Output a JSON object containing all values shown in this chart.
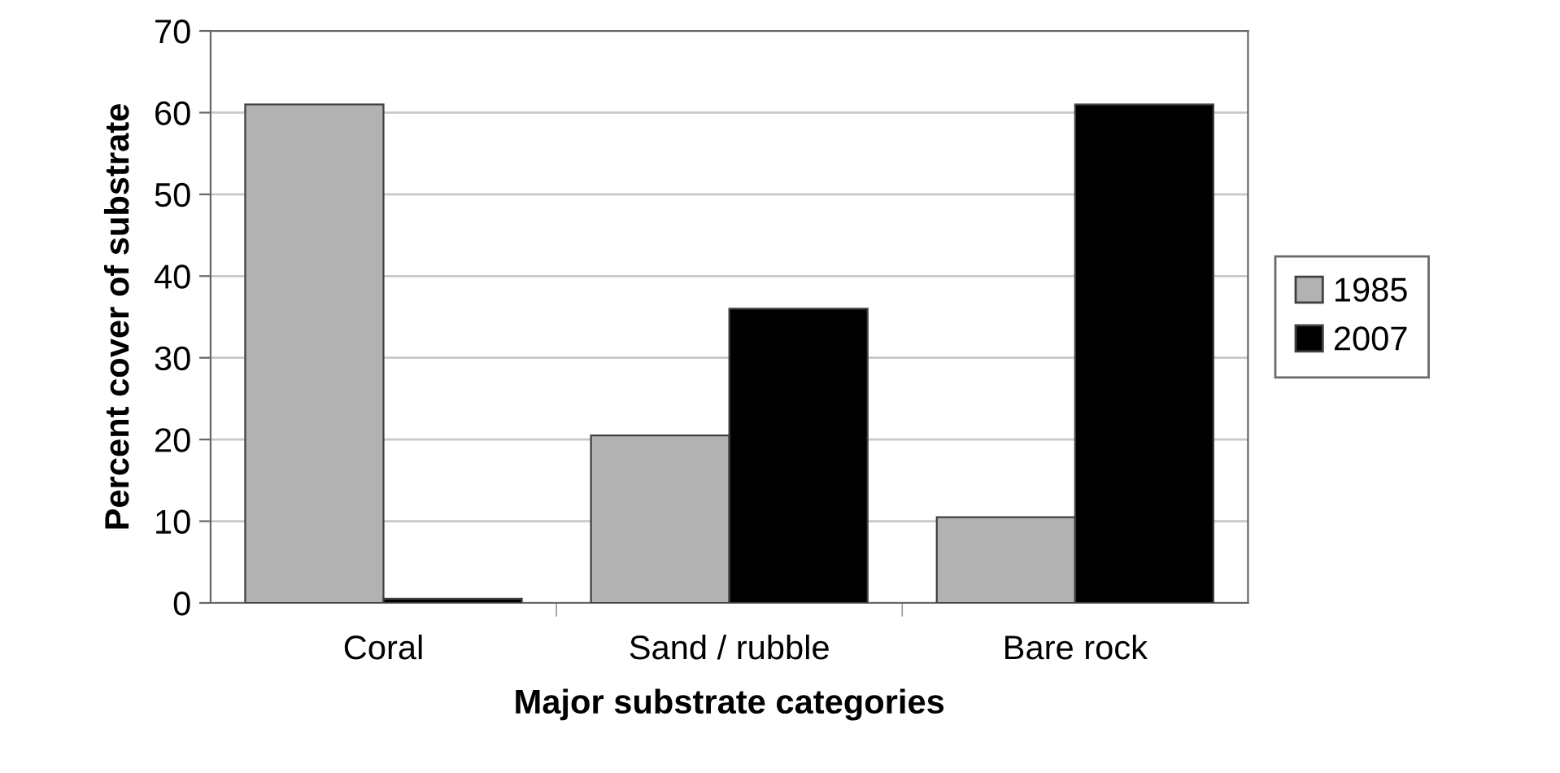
{
  "chart_data": {
    "type": "bar",
    "xlabel": "Major substrate categories",
    "ylabel": "Percent cover of substrate",
    "categories": [
      "Coral",
      "Sand / rubble",
      "Bare rock"
    ],
    "series": [
      {
        "name": "1985",
        "color": "#b2b2b2",
        "values": [
          61,
          20.5,
          10.5
        ]
      },
      {
        "name": "2007",
        "color": "#000000",
        "values": [
          0.5,
          36,
          61
        ]
      }
    ],
    "ylim": [
      0,
      70
    ],
    "yticks": [
      0,
      10,
      20,
      30,
      40,
      50,
      60,
      70
    ],
    "grid": "y",
    "legend": "right"
  }
}
